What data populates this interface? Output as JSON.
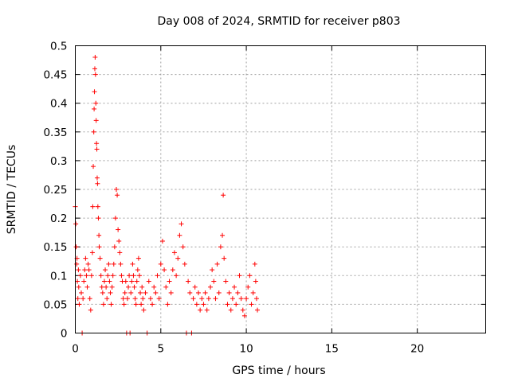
{
  "chart_data": {
    "type": "scatter",
    "title": "Day 008 of 2024, SRMTID for receiver p803",
    "xlabel": "GPS time / hours",
    "ylabel": "SRMTID / TECUs",
    "xlim": [
      0,
      24
    ],
    "ylim": [
      0,
      0.5
    ],
    "xticks": [
      0,
      5,
      10,
      15,
      20
    ],
    "xtick_labels": [
      "0",
      "5",
      "10",
      "15",
      "20"
    ],
    "yticks": [
      0,
      0.05,
      0.1,
      0.15,
      0.2,
      0.25,
      0.3,
      0.35,
      0.4,
      0.45,
      0.5
    ],
    "ytick_labels": [
      "0",
      "0.05",
      "0.1",
      "0.15",
      "0.2",
      "0.25",
      "0.3",
      "0.35",
      "0.4",
      "0.45",
      "0.5"
    ],
    "grid": true,
    "marker": "+",
    "marker_color": "#ff0000",
    "series": [
      {
        "points": [
          [
            0.0,
            0.22
          ],
          [
            0.03,
            0.19
          ],
          [
            0.05,
            0.15
          ],
          [
            0.08,
            0.12
          ],
          [
            0.1,
            0.13
          ],
          [
            0.12,
            0.09
          ],
          [
            0.15,
            0.06
          ],
          [
            0.18,
            0.11
          ],
          [
            0.2,
            0.08
          ],
          [
            0.23,
            0.05
          ],
          [
            0.3,
            0.1
          ],
          [
            0.35,
            0.07
          ],
          [
            0.4,
            0.0
          ],
          [
            0.45,
            0.06
          ],
          [
            0.5,
            0.09
          ],
          [
            0.55,
            0.11
          ],
          [
            0.6,
            0.13
          ],
          [
            0.65,
            0.1
          ],
          [
            0.7,
            0.08
          ],
          [
            0.75,
            0.12
          ],
          [
            0.8,
            0.11
          ],
          [
            0.85,
            0.06
          ],
          [
            0.9,
            0.04
          ],
          [
            0.95,
            0.1
          ],
          [
            1.0,
            0.14
          ],
          [
            1.02,
            0.22
          ],
          [
            1.05,
            0.29
          ],
          [
            1.08,
            0.35
          ],
          [
            1.1,
            0.39
          ],
          [
            1.12,
            0.42
          ],
          [
            1.14,
            0.46
          ],
          [
            1.16,
            0.48
          ],
          [
            1.18,
            0.45
          ],
          [
            1.2,
            0.4
          ],
          [
            1.22,
            0.37
          ],
          [
            1.24,
            0.33
          ],
          [
            1.26,
            0.32
          ],
          [
            1.28,
            0.27
          ],
          [
            1.3,
            0.26
          ],
          [
            1.32,
            0.22
          ],
          [
            1.35,
            0.2
          ],
          [
            1.38,
            0.17
          ],
          [
            1.4,
            0.15
          ],
          [
            1.45,
            0.13
          ],
          [
            1.5,
            0.1
          ],
          [
            1.55,
            0.08
          ],
          [
            1.6,
            0.07
          ],
          [
            1.65,
            0.05
          ],
          [
            1.7,
            0.09
          ],
          [
            1.75,
            0.11
          ],
          [
            1.8,
            0.08
          ],
          [
            1.85,
            0.06
          ],
          [
            1.9,
            0.1
          ],
          [
            1.95,
            0.12
          ],
          [
            2.0,
            0.09
          ],
          [
            2.05,
            0.07
          ],
          [
            2.1,
            0.05
          ],
          [
            2.15,
            0.08
          ],
          [
            2.2,
            0.1
          ],
          [
            2.25,
            0.12
          ],
          [
            2.3,
            0.15
          ],
          [
            2.35,
            0.2
          ],
          [
            2.4,
            0.25
          ],
          [
            2.45,
            0.24
          ],
          [
            2.5,
            0.18
          ],
          [
            2.55,
            0.16
          ],
          [
            2.6,
            0.14
          ],
          [
            2.65,
            0.12
          ],
          [
            2.7,
            0.1
          ],
          [
            2.75,
            0.09
          ],
          [
            2.8,
            0.06
          ],
          [
            2.85,
            0.05
          ],
          [
            2.9,
            0.07
          ],
          [
            2.95,
            0.09
          ],
          [
            3.0,
            0.0
          ],
          [
            3.05,
            0.06
          ],
          [
            3.1,
            0.08
          ],
          [
            3.15,
            0.1
          ],
          [
            3.2,
            0.0
          ],
          [
            3.25,
            0.07
          ],
          [
            3.3,
            0.09
          ],
          [
            3.35,
            0.12
          ],
          [
            3.4,
            0.1
          ],
          [
            3.45,
            0.08
          ],
          [
            3.5,
            0.06
          ],
          [
            3.55,
            0.05
          ],
          [
            3.6,
            0.09
          ],
          [
            3.65,
            0.11
          ],
          [
            3.7,
            0.13
          ],
          [
            3.75,
            0.1
          ],
          [
            3.8,
            0.07
          ],
          [
            3.85,
            0.05
          ],
          [
            3.9,
            0.08
          ],
          [
            3.95,
            0.06
          ],
          [
            4.0,
            0.04
          ],
          [
            4.1,
            0.07
          ],
          [
            4.2,
            0.0
          ],
          [
            4.3,
            0.09
          ],
          [
            4.4,
            0.06
          ],
          [
            4.5,
            0.05
          ],
          [
            4.6,
            0.08
          ],
          [
            4.7,
            0.07
          ],
          [
            4.8,
            0.1
          ],
          [
            4.9,
            0.06
          ],
          [
            5.0,
            0.12
          ],
          [
            5.1,
            0.16
          ],
          [
            5.2,
            0.11
          ],
          [
            5.3,
            0.08
          ],
          [
            5.4,
            0.05
          ],
          [
            5.5,
            0.09
          ],
          [
            5.6,
            0.07
          ],
          [
            5.7,
            0.11
          ],
          [
            5.8,
            0.14
          ],
          [
            5.9,
            0.1
          ],
          [
            6.0,
            0.13
          ],
          [
            6.1,
            0.17
          ],
          [
            6.2,
            0.19
          ],
          [
            6.3,
            0.15
          ],
          [
            6.4,
            0.12
          ],
          [
            6.5,
            0.0
          ],
          [
            6.6,
            0.09
          ],
          [
            6.7,
            0.07
          ],
          [
            6.8,
            0.0
          ],
          [
            6.9,
            0.06
          ],
          [
            7.0,
            0.08
          ],
          [
            7.1,
            0.05
          ],
          [
            7.2,
            0.07
          ],
          [
            7.3,
            0.04
          ],
          [
            7.4,
            0.06
          ],
          [
            7.5,
            0.05
          ],
          [
            7.6,
            0.07
          ],
          [
            7.7,
            0.04
          ],
          [
            7.8,
            0.06
          ],
          [
            7.9,
            0.08
          ],
          [
            8.0,
            0.11
          ],
          [
            8.1,
            0.09
          ],
          [
            8.2,
            0.06
          ],
          [
            8.3,
            0.12
          ],
          [
            8.4,
            0.07
          ],
          [
            8.5,
            0.15
          ],
          [
            8.6,
            0.17
          ],
          [
            8.65,
            0.24
          ],
          [
            8.7,
            0.13
          ],
          [
            8.8,
            0.09
          ],
          [
            8.9,
            0.05
          ],
          [
            9.0,
            0.07
          ],
          [
            9.1,
            0.04
          ],
          [
            9.2,
            0.06
          ],
          [
            9.3,
            0.08
          ],
          [
            9.4,
            0.05
          ],
          [
            9.5,
            0.07
          ],
          [
            9.6,
            0.1
          ],
          [
            9.7,
            0.06
          ],
          [
            9.8,
            0.04
          ],
          [
            9.9,
            0.03
          ],
          [
            10.0,
            0.06
          ],
          [
            10.1,
            0.08
          ],
          [
            10.2,
            0.1
          ],
          [
            10.3,
            0.05
          ],
          [
            10.4,
            0.07
          ],
          [
            10.5,
            0.12
          ],
          [
            10.55,
            0.09
          ],
          [
            10.6,
            0.06
          ],
          [
            10.65,
            0.04
          ]
        ]
      }
    ]
  }
}
